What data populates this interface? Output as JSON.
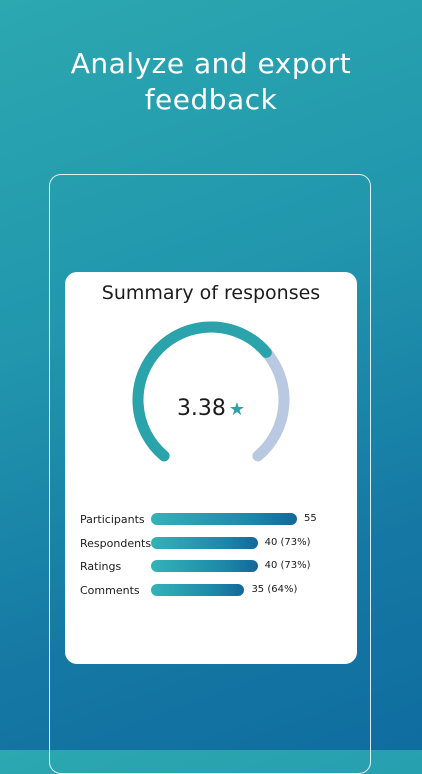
{
  "headline": {
    "line1": "Analyze and export",
    "line2": "feedback"
  },
  "summary": {
    "title": "Summary of responses",
    "average_rating": "3.38",
    "rating_max": 5,
    "star_icon": "star-icon",
    "gauge_fill_color": "#2ba3aa",
    "gauge_track_color": "#b9c9e2"
  },
  "metrics": [
    {
      "label": "Participants",
      "value_text": "55",
      "fraction": 1.0
    },
    {
      "label": "Respondents",
      "value_text": "40 (73%)",
      "fraction": 0.73
    },
    {
      "label": "Ratings",
      "value_text": "40 (73%)",
      "fraction": 0.73
    },
    {
      "label": "Comments",
      "value_text": "35 (64%)",
      "fraction": 0.64
    }
  ],
  "colors": {
    "accent": "#2ba3aa",
    "bar_gradient_start": "#33b3b7",
    "bar_gradient_end": "#14679a"
  }
}
